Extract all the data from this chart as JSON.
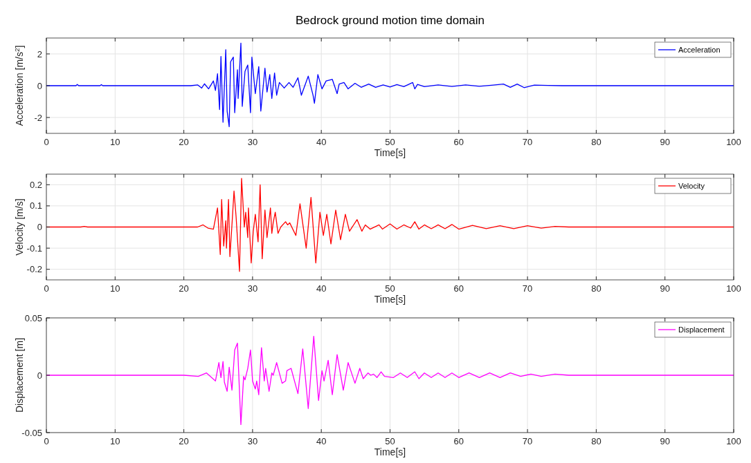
{
  "chart_data": [
    {
      "type": "line",
      "title": "Bedrock ground motion time domain",
      "xlabel": "Time[s]",
      "ylabel": "Acceleration [m/s$^{2}$]",
      "xlim": [
        0,
        100
      ],
      "ylim": [
        -3,
        3
      ],
      "xticks": [
        0,
        10,
        20,
        30,
        40,
        50,
        60,
        70,
        80,
        90,
        100
      ],
      "yticks": [
        -2,
        0,
        2
      ],
      "grid": true,
      "legend": "top right",
      "series": [
        {
          "name": "Acceleration",
          "color": "#0000ff",
          "x": [
            0,
            4.3,
            4.5,
            4.7,
            7.8,
            8,
            8.2,
            12,
            19,
            21,
            22,
            22.6,
            23,
            23.6,
            24.3,
            24.6,
            24.9,
            25.2,
            25.4,
            25.7,
            26.1,
            26.3,
            26.6,
            26.8,
            27.2,
            27.4,
            27.8,
            27.9,
            28.3,
            28.5,
            28.9,
            29.3,
            29.7,
            29.9,
            30.4,
            30.9,
            31.2,
            31.8,
            32.1,
            32.5,
            32.8,
            33.2,
            33.5,
            33.9,
            34.6,
            35.3,
            35.9,
            36.6,
            37.1,
            38.1,
            38.8,
            39,
            39.5,
            40.1,
            40.7,
            41.6,
            42.3,
            42.6,
            43.3,
            43.9,
            44.9,
            45.8,
            46.9,
            47.9,
            49,
            50,
            51,
            52,
            53.3,
            53.6,
            54,
            55,
            57,
            59,
            61,
            63,
            65,
            66.5,
            67.5,
            68.5,
            69.5,
            71,
            73,
            75,
            100
          ],
          "values": [
            0,
            0,
            0.08,
            0,
            0,
            0.07,
            0,
            0,
            0,
            0,
            0.05,
            -0.15,
            0.12,
            -0.2,
            0.3,
            -0.3,
            0.75,
            -1.5,
            1.84,
            -2.3,
            2.27,
            -1.6,
            -2.58,
            1.5,
            1.8,
            -1.7,
            1.0,
            -0.8,
            2.68,
            -1.3,
            0.9,
            1.3,
            -1.7,
            1.8,
            -0.5,
            1.2,
            -1.6,
            1.1,
            -0.4,
            0.7,
            -0.8,
            0.8,
            -0.6,
            0.2,
            -0.15,
            0.2,
            -0.1,
            0.5,
            -0.6,
            0.6,
            -0.6,
            -1.1,
            0.7,
            -0.2,
            0.3,
            0.4,
            -0.5,
            0.1,
            0.2,
            -0.2,
            0.15,
            -0.1,
            0.1,
            -0.1,
            0.05,
            -0.08,
            0.07,
            -0.06,
            0.2,
            -0.2,
            0.08,
            -0.06,
            0.05,
            -0.05,
            0.05,
            -0.04,
            0.04,
            0.1,
            -0.1,
            0.1,
            -0.12,
            0.04,
            0.02,
            0,
            0
          ]
        }
      ]
    },
    {
      "type": "line",
      "xlabel": "Time[s]",
      "ylabel": "Velocity [m/s]",
      "xlim": [
        0,
        100
      ],
      "ylim": [
        -0.25,
        0.25
      ],
      "xticks": [
        0,
        10,
        20,
        30,
        40,
        50,
        60,
        70,
        80,
        90,
        100
      ],
      "yticks": [
        -0.2,
        -0.1,
        0,
        0.1,
        0.2
      ],
      "grid": true,
      "legend": "top right",
      "series": [
        {
          "name": "Velocity",
          "color": "#ff0000",
          "x": [
            0,
            5,
            5.5,
            6,
            20,
            22,
            22.8,
            23.5,
            24.3,
            24.9,
            25.3,
            25.5,
            25.8,
            26.1,
            26.2,
            26.5,
            26.7,
            27,
            27.3,
            27.6,
            28.1,
            28.4,
            28.8,
            29,
            29.3,
            29.4,
            29.8,
            30.1,
            30.4,
            30.8,
            31.1,
            31.4,
            31.8,
            32.1,
            32.6,
            32.8,
            33,
            33.3,
            33.7,
            34.1,
            34.8,
            35.1,
            35.4,
            36.3,
            36.9,
            37.8,
            38.5,
            39.2,
            39.8,
            40.3,
            40.8,
            41.4,
            42.1,
            42.8,
            43.5,
            44.1,
            45.2,
            45.9,
            46.4,
            47.1,
            48.4,
            48.9,
            50,
            51,
            52,
            53,
            53.6,
            54.2,
            55,
            56,
            57,
            58,
            59,
            60,
            62,
            64,
            66,
            68,
            70,
            72,
            74,
            76,
            100
          ],
          "values": [
            0,
            0,
            0.003,
            0,
            0,
            0,
            0.01,
            -0.005,
            -0.01,
            0.09,
            -0.13,
            0.13,
            -0.09,
            0.03,
            -0.1,
            0.13,
            -0.14,
            0.01,
            0.17,
            0.05,
            -0.21,
            0.23,
            0,
            0.07,
            -0.05,
            0.09,
            -0.17,
            -0.02,
            0.06,
            -0.07,
            0.2,
            -0.15,
            0.08,
            -0.05,
            0.09,
            -0.03,
            0.02,
            0.07,
            -0.03,
            0,
            0.025,
            0.01,
            0.02,
            -0.04,
            0.11,
            -0.1,
            0.14,
            -0.17,
            0.07,
            -0.04,
            0.06,
            -0.08,
            0.08,
            -0.06,
            0.06,
            -0.02,
            0.035,
            -0.02,
            0.01,
            -0.01,
            0.01,
            -0.01,
            0.015,
            -0.01,
            0.01,
            -0.005,
            0.025,
            -0.01,
            0.01,
            -0.008,
            0.01,
            -0.008,
            0.012,
            -0.01,
            0.008,
            -0.008,
            0.006,
            -0.008,
            0.006,
            -0.005,
            0.003,
            0,
            0
          ]
        }
      ]
    },
    {
      "type": "line",
      "xlabel": "Time[s]",
      "ylabel": "Displacement [m]",
      "xlim": [
        0,
        100
      ],
      "ylim": [
        -0.05,
        0.05
      ],
      "xticks": [
        0,
        10,
        20,
        30,
        40,
        50,
        60,
        70,
        80,
        90,
        100
      ],
      "yticks": [
        -0.05,
        0,
        0.05
      ],
      "grid": true,
      "legend": "top right",
      "series": [
        {
          "name": "Displacement",
          "color": "#ff00ff",
          "x": [
            0,
            20,
            22.1,
            23.3,
            24.6,
            25.1,
            25.4,
            25.7,
            25.9,
            26.3,
            26.6,
            27,
            27.4,
            27.8,
            28.3,
            28.7,
            28.9,
            29.3,
            29.7,
            30,
            30.4,
            30.6,
            30.9,
            31.3,
            31.7,
            31.9,
            32.4,
            32.8,
            33,
            33.5,
            34.3,
            34.8,
            35,
            35.6,
            36.6,
            37.3,
            38.1,
            38.9,
            39.6,
            40.1,
            40.4,
            41,
            41.6,
            42.3,
            43.2,
            43.9,
            44.9,
            45.6,
            46.1,
            46.8,
            47.2,
            47.6,
            48.1,
            48.7,
            49.2,
            50.5,
            51.5,
            52.5,
            53.6,
            54.2,
            55,
            56,
            57,
            58,
            59,
            60,
            61.5,
            63,
            64.5,
            66,
            67.5,
            69,
            70.5,
            72,
            74,
            76,
            100
          ],
          "values": [
            0,
            0,
            -0.001,
            0.002,
            -0.005,
            0.011,
            -0.002,
            0.012,
            -0.006,
            -0.014,
            0.007,
            -0.013,
            0.022,
            0.028,
            -0.043,
            -0.001,
            -0.004,
            0.006,
            0.022,
            -0.005,
            -0.012,
            -0.005,
            -0.017,
            0.024,
            -0.005,
            0.006,
            -0.014,
            0.002,
            0,
            0.011,
            -0.007,
            -0.005,
            0.004,
            0.006,
            -0.016,
            0.023,
            -0.029,
            0.034,
            -0.022,
            0.004,
            -0.005,
            0.013,
            -0.017,
            0.018,
            -0.013,
            0.011,
            -0.007,
            0.006,
            -0.003,
            0.002,
            0,
            0.001,
            -0.002,
            0.003,
            -0.001,
            -0.002,
            0.002,
            -0.002,
            0.003,
            -0.003,
            0.002,
            -0.002,
            0.002,
            -0.002,
            0.002,
            -0.002,
            0.002,
            -0.002,
            0.002,
            -0.002,
            0.002,
            -0.001,
            0.001,
            -0.001,
            0.001,
            0,
            0
          ]
        }
      ]
    }
  ]
}
